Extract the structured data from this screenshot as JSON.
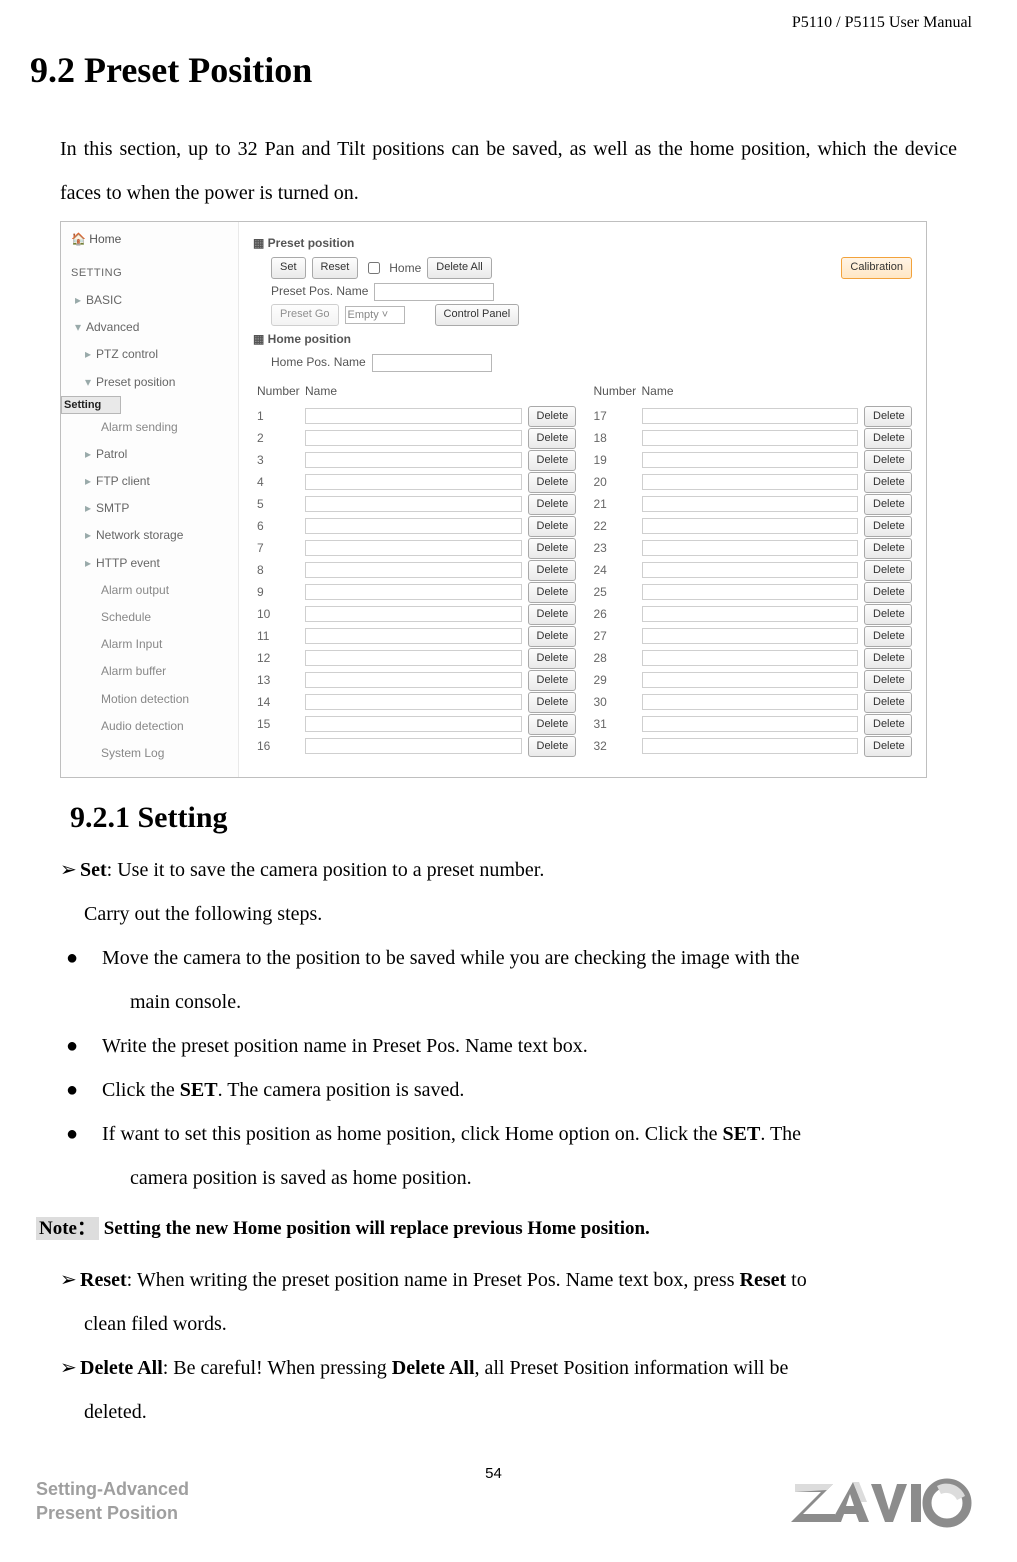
{
  "header": {
    "manual": "P5110 / P5115 User Manual"
  },
  "title": "9.2 Preset Position",
  "intro": "In this section, up to 32 Pan and Tilt positions can be saved, as well as the home position, which the device faces to when the power is turned on.",
  "ui": {
    "sidebar": {
      "home": "Home",
      "setting": "SETTING",
      "basic": "BASIC",
      "advanced": "Advanced",
      "items": {
        "ptz": "PTZ control",
        "preset": "Preset position",
        "setting_sel": "Setting",
        "alarmsend": "Alarm sending",
        "patrol": "Patrol",
        "ftp": "FTP client",
        "smtp": "SMTP",
        "netstorage": "Network storage",
        "httpevent": "HTTP event",
        "alarmout": "Alarm output",
        "schedule": "Schedule",
        "alarmin": "Alarm Input",
        "alarmbuf": "Alarm buffer",
        "motion": "Motion detection",
        "audio": "Audio detection",
        "syslog": "System Log"
      }
    },
    "panel": {
      "preset_head": "Preset position",
      "set": "Set",
      "reset": "Reset",
      "home_chk": "Home",
      "delete_all": "Delete All",
      "calibration": "Calibration",
      "preset_pos_name": "Preset Pos. Name",
      "preset_go": "Preset Go",
      "empty": "Empty",
      "control_panel": "Control Panel",
      "home_head": "Home position",
      "home_pos_name": "Home Pos. Name",
      "number": "Number",
      "name": "Name",
      "delete": "Delete",
      "left_start": 1,
      "left_end": 16,
      "right_start": 17,
      "right_end": 32
    }
  },
  "subtitle": "9.2.1 Setting",
  "set_label": "Set",
  "set_text": ": Use it to save the camera position to a preset number.",
  "carry": "Carry out the following steps.",
  "bul1": "Move the camera to the position to be saved while you are checking the image with the",
  "bul1b": "main console.",
  "bul2": "Write the preset position name in Preset Pos. Name text box.",
  "bul3a": "Click the ",
  "bul3b": "SET",
  "bul3c": ". The camera position is saved.",
  "bul4a": "If want to set this position as home position, click Home option on. Click the ",
  "bul4b": "SET",
  "bul4c": ". The",
  "bul4d": "camera position is saved as home position.",
  "note_label": "Note：",
  "note_text": " Setting the new Home position will replace previous Home position.",
  "reset_label": "Reset",
  "reset_text_a": ": When writing the preset position name in Preset Pos. Name text box, press ",
  "reset_bold": "Reset",
  "reset_text_b": " to",
  "reset_text_c": "clean filed words.",
  "deleteall_label": "Delete All",
  "deleteall_text_a": ": Be careful! When pressing ",
  "deleteall_bold": "Delete All",
  "deleteall_text_b": ", all Preset Position information will be",
  "deleteall_text_c": "deleted.",
  "page_num": "54",
  "footer_left_a": "Setting-Advanced",
  "footer_left_b": "Present Position",
  "logo_text": "ZAVIO",
  "colors": {
    "text": "#000000",
    "grey_text": "#9f9f9f",
    "note_bg": "#dddddd",
    "ui_border": "#bfbfbf",
    "btn_border": "#a9a9a9",
    "orange_border": "#f2a23b",
    "logo_primary": "#8c8c8c",
    "logo_light": "#dcdcdc"
  }
}
